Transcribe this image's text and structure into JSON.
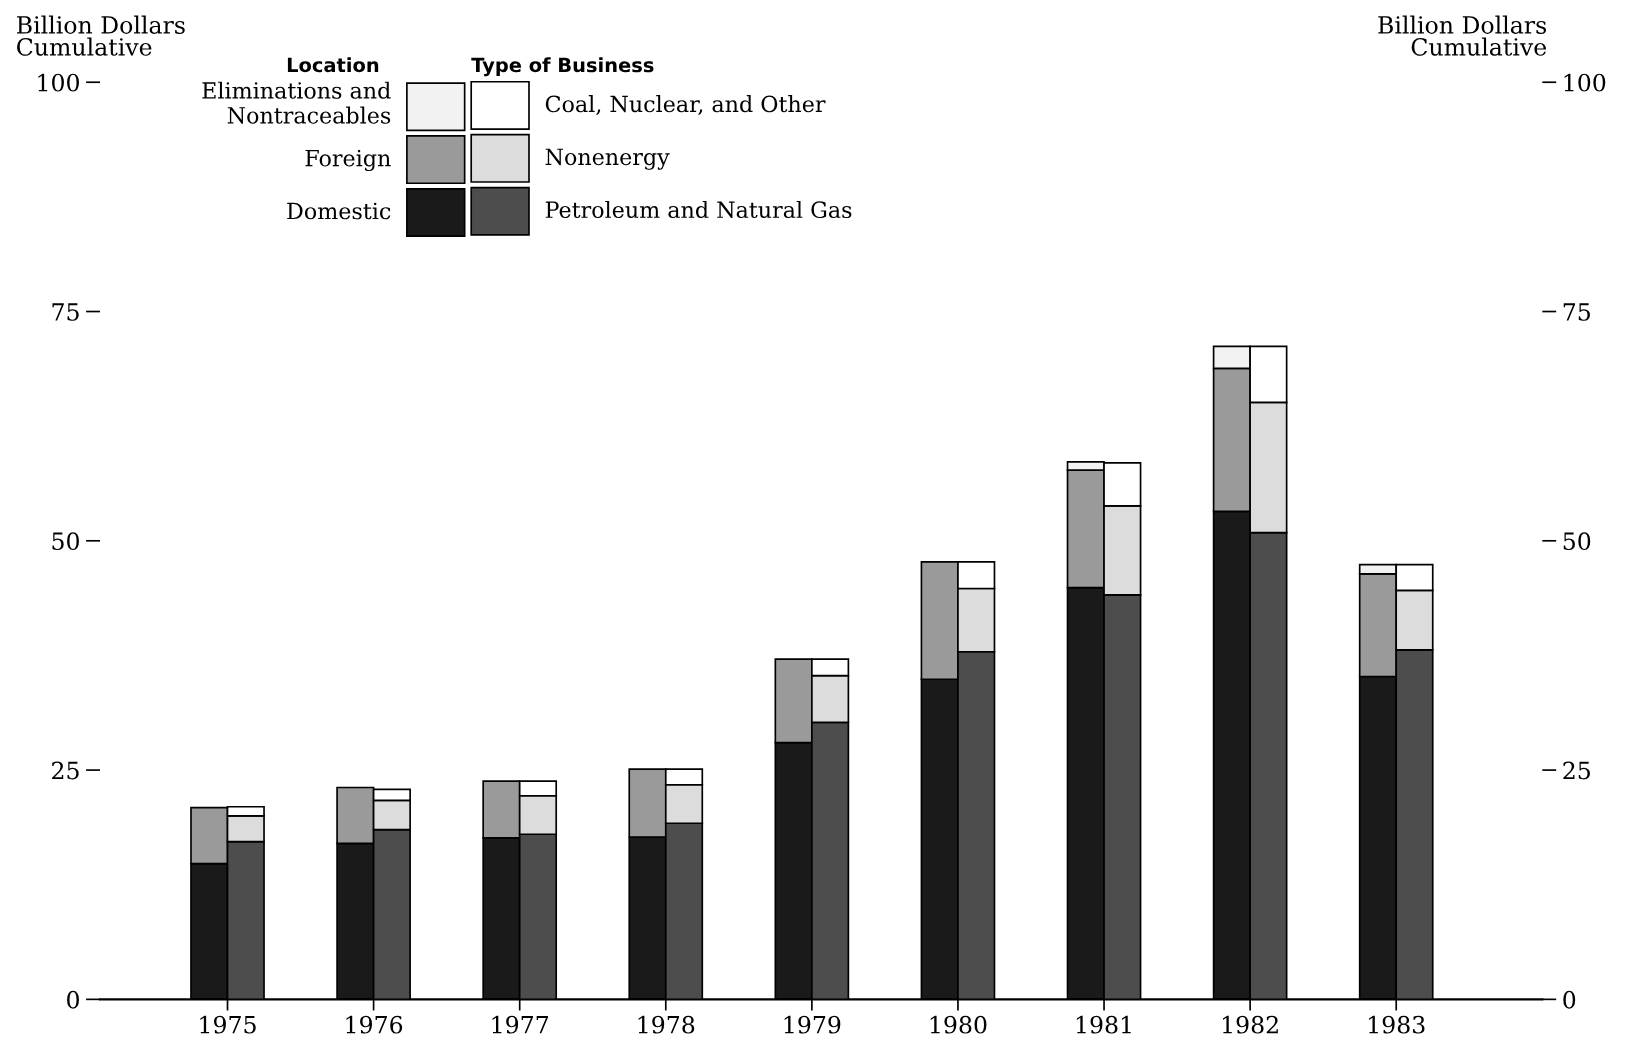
{
  "chart_data": [
    {
      "type": "bar",
      "stacked": true,
      "ylabel": "Billion Dollars\nCumulative",
      "y2label": "Billion Dollars\nCumulative",
      "legend_title": "Location",
      "categories": [
        "1975",
        "1976",
        "1977",
        "1978",
        "1979",
        "1980",
        "1981",
        "1982",
        "1983"
      ],
      "series": [
        {
          "name": "Domestic",
          "color": "#1a1a1a",
          "values": [
            14.8,
            17.0,
            17.6,
            17.7,
            28.0,
            34.9,
            44.9,
            53.2,
            35.2
          ]
        },
        {
          "name": "Foreign",
          "color": "#9a9a9a",
          "values": [
            6.1,
            6.1,
            6.2,
            7.4,
            9.1,
            12.8,
            12.8,
            15.6,
            11.2
          ]
        },
        {
          "name": "Eliminations and\nNontraceables",
          "color": "#f2f2f2",
          "values": [
            null,
            null,
            null,
            null,
            null,
            null,
            0.9,
            2.4,
            1.0
          ]
        }
      ],
      "ylim": [
        0,
        100
      ],
      "yticks": [
        0,
        25,
        50,
        75,
        100
      ],
      "y2lim": [
        0,
        100
      ],
      "y2ticks": [
        0,
        25,
        50,
        75,
        100
      ],
      "grid": false,
      "legend": "top left"
    },
    {
      "type": "bar",
      "stacked": true,
      "legend_title": "Type of Business",
      "categories": [
        "1975",
        "1976",
        "1977",
        "1978",
        "1979",
        "1980",
        "1981",
        "1982",
        "1983"
      ],
      "series": [
        {
          "name": "Petroleum and Natural Gas",
          "color": "#4d4d4d",
          "values": [
            17.2,
            18.5,
            18.0,
            19.2,
            30.2,
            37.9,
            44.1,
            50.9,
            38.1
          ]
        },
        {
          "name": "Nonenergy",
          "color": "#dcdcdc",
          "values": [
            2.8,
            3.2,
            4.2,
            4.2,
            5.1,
            6.9,
            9.7,
            14.2,
            6.5
          ]
        },
        {
          "name": "Coal, Nuclear, and Other",
          "color": "#ffffff",
          "values": [
            1.0,
            1.2,
            1.6,
            1.7,
            1.8,
            2.9,
            4.7,
            6.1,
            2.8
          ]
        }
      ],
      "ylim": [
        0,
        100
      ],
      "tick_labels": false,
      "grid": false,
      "legend": "top left"
    }
  ]
}
